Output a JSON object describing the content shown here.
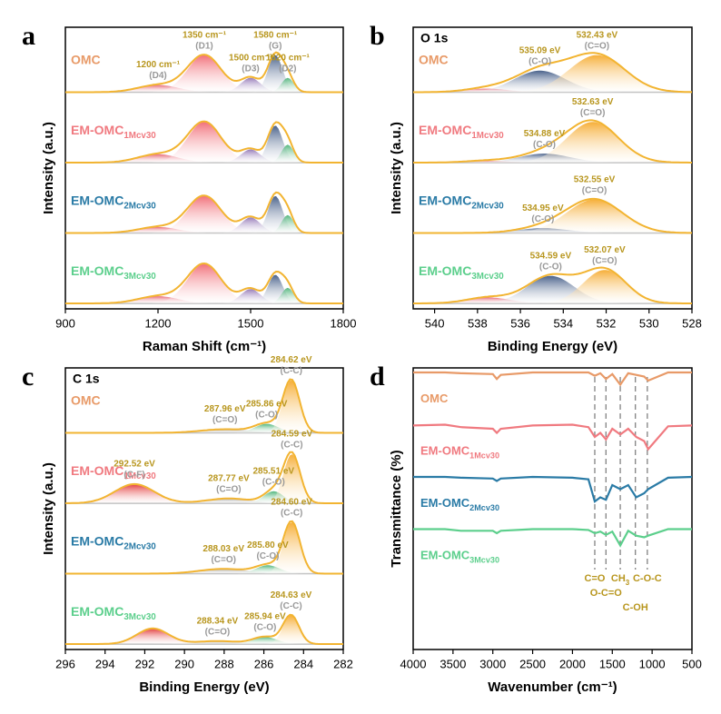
{
  "chart_data": [
    {
      "type": "spectra",
      "panel": "a",
      "xlabel": "Raman Shift (cm⁻¹)",
      "ylabel": "Intensity (a.u.)",
      "xlim": [
        900,
        1800
      ],
      "xticks": [
        900,
        1200,
        1500,
        1800
      ],
      "envelope_color": "#f2b431",
      "samples": [
        {
          "name": "OMC",
          "color": "#e89a68",
          "peaks": [
            {
              "center": 1200,
              "height": 0.12,
              "width": 65,
              "color": "#e45a6a",
              "label": "1200 cm⁻¹",
              "tag": "(D4)"
            },
            {
              "center": 1350,
              "height": 0.62,
              "width": 55,
              "color": "#f0606a",
              "label": "1350 cm⁻¹",
              "tag": "(D1)"
            },
            {
              "center": 1500,
              "height": 0.24,
              "width": 32,
              "color": "#8a6cb0",
              "label": "1500 cm⁻¹",
              "tag": "(D3)"
            },
            {
              "center": 1580,
              "height": 0.62,
              "width": 24,
              "color": "#35507e",
              "label": "1580 cm⁻¹",
              "tag": "(G)"
            },
            {
              "center": 1620,
              "height": 0.24,
              "width": 20,
              "color": "#3fae6e",
              "label": "1620 cm⁻¹",
              "tag": "(D2)"
            }
          ]
        },
        {
          "name": "EM-OMC",
          "subscript": "1Mcv30",
          "color": "#f07a80",
          "peaks": [
            {
              "center": 1200,
              "height": 0.14,
              "width": 65,
              "color": "#e45a6a"
            },
            {
              "center": 1350,
              "height": 0.68,
              "width": 55,
              "color": "#f0606a"
            },
            {
              "center": 1500,
              "height": 0.22,
              "width": 32,
              "color": "#8a6cb0"
            },
            {
              "center": 1580,
              "height": 0.62,
              "width": 24,
              "color": "#35507e"
            },
            {
              "center": 1620,
              "height": 0.3,
              "width": 20,
              "color": "#3fae6e"
            }
          ]
        },
        {
          "name": "EM-OMC",
          "subscript": "2Mcv30",
          "color": "#2a7ba6",
          "peaks": [
            {
              "center": 1200,
              "height": 0.1,
              "width": 65,
              "color": "#e45a6a"
            },
            {
              "center": 1350,
              "height": 0.62,
              "width": 55,
              "color": "#f0606a"
            },
            {
              "center": 1500,
              "height": 0.26,
              "width": 32,
              "color": "#8a6cb0"
            },
            {
              "center": 1580,
              "height": 0.62,
              "width": 24,
              "color": "#35507e"
            },
            {
              "center": 1620,
              "height": 0.3,
              "width": 20,
              "color": "#3fae6e"
            }
          ]
        },
        {
          "name": "EM-OMC",
          "subscript": "3Mcv30",
          "color": "#5ccf8c",
          "peaks": [
            {
              "center": 1200,
              "height": 0.12,
              "width": 65,
              "color": "#e45a6a"
            },
            {
              "center": 1350,
              "height": 0.66,
              "width": 55,
              "color": "#f0606a"
            },
            {
              "center": 1500,
              "height": 0.24,
              "width": 32,
              "color": "#8a6cb0"
            },
            {
              "center": 1580,
              "height": 0.48,
              "width": 24,
              "color": "#35507e"
            },
            {
              "center": 1620,
              "height": 0.26,
              "width": 20,
              "color": "#3fae6e"
            }
          ]
        }
      ]
    },
    {
      "type": "spectra",
      "panel": "b",
      "title": "O 1s",
      "xlabel": "Binding Energy (eV)",
      "ylabel": "Intensity (a.u.)",
      "xlim": [
        541,
        528
      ],
      "xticks": [
        540,
        538,
        536,
        534,
        532,
        530,
        528
      ],
      "envelope_color": "#f2b431",
      "samples": [
        {
          "name": "OMC",
          "color": "#e89a68",
          "peaks": [
            {
              "center": 537.6,
              "height": 0.06,
              "width": 1.0,
              "color": "#e45a6a"
            },
            {
              "center": 535.09,
              "height": 0.36,
              "width": 1.2,
              "color": "#35507e",
              "label": "535.09 eV",
              "tag": "(C-O)"
            },
            {
              "center": 532.43,
              "height": 0.62,
              "width": 1.3,
              "color": "#f5a623",
              "label": "532.43 eV",
              "tag": "(C=O)"
            }
          ]
        },
        {
          "name": "EM-OMC",
          "subscript": "1Mcv30",
          "color": "#f07a80",
          "peaks": [
            {
              "center": 537.6,
              "height": 0.03,
              "width": 1.0,
              "color": "#e45a6a"
            },
            {
              "center": 534.88,
              "height": 0.15,
              "width": 1.2,
              "color": "#35507e",
              "label": "534.88 eV",
              "tag": "(C-O)"
            },
            {
              "center": 532.63,
              "height": 0.68,
              "width": 1.2,
              "color": "#f5a623",
              "label": "532.63 eV",
              "tag": "(C=O)"
            }
          ]
        },
        {
          "name": "EM-OMC",
          "subscript": "2Mcv30",
          "color": "#2a7ba6",
          "peaks": [
            {
              "center": 534.95,
              "height": 0.08,
              "width": 1.2,
              "color": "#35507e",
              "label": "534.95 eV",
              "tag": "(C-O)"
            },
            {
              "center": 532.55,
              "height": 0.56,
              "width": 1.3,
              "color": "#f5a623",
              "label": "532.55 eV",
              "tag": "(C=O)"
            }
          ]
        },
        {
          "name": "EM-OMC",
          "subscript": "3Mcv30",
          "color": "#5ccf8c",
          "peaks": [
            {
              "center": 537.5,
              "height": 0.1,
              "width": 1.0,
              "color": "#e45a6a"
            },
            {
              "center": 534.59,
              "height": 0.46,
              "width": 1.1,
              "color": "#35507e",
              "label": "534.59 eV",
              "tag": "(C-O)"
            },
            {
              "center": 532.07,
              "height": 0.56,
              "width": 1.0,
              "color": "#f5a623",
              "label": "532.07 eV",
              "tag": "(C=O)"
            }
          ]
        }
      ]
    },
    {
      "type": "spectra",
      "panel": "c",
      "title": "C 1s",
      "xlabel": "Binding Energy (eV)",
      "ylabel": "Intensity (a.u.)",
      "xlim": [
        296,
        282
      ],
      "xticks": [
        296,
        294,
        292,
        290,
        288,
        286,
        284,
        282
      ],
      "envelope_color": "#f2b431",
      "samples": [
        {
          "name": "OMC",
          "color": "#e89a68",
          "peaks": [
            {
              "center": 287.96,
              "height": 0.06,
              "width": 1.2,
              "color": "#9a9a9a",
              "label": "287.96 eV",
              "tag": "(C=O)"
            },
            {
              "center": 285.86,
              "height": 0.15,
              "width": 0.6,
              "color": "#3fae6e",
              "label": "285.86 eV",
              "tag": "(C-O)"
            },
            {
              "center": 284.62,
              "height": 0.88,
              "width": 0.42,
              "color": "#f5a623",
              "label": "284.62 eV",
              "tag": "(C-C)"
            }
          ]
        },
        {
          "name": "EM-OMC",
          "subscript": "1Mcv30",
          "color": "#f07a80",
          "peaks": [
            {
              "center": 292.52,
              "height": 0.32,
              "width": 1.0,
              "color": "#e02828",
              "label": "292.52 eV",
              "tag": "(C-F)"
            },
            {
              "center": 287.77,
              "height": 0.08,
              "width": 1.1,
              "color": "#9a9a9a",
              "label": "287.77 eV",
              "tag": "(C=O)"
            },
            {
              "center": 285.51,
              "height": 0.2,
              "width": 0.5,
              "color": "#3fae6e",
              "label": "285.51 eV",
              "tag": "(C-O)"
            },
            {
              "center": 284.59,
              "height": 0.82,
              "width": 0.42,
              "color": "#f5a623",
              "label": "284.59 eV",
              "tag": "(C-C)"
            }
          ]
        },
        {
          "name": "EM-OMC",
          "subscript": "2Mcv30",
          "color": "#2a7ba6",
          "peaks": [
            {
              "center": 288.03,
              "height": 0.08,
              "width": 1.2,
              "color": "#9a9a9a",
              "label": "288.03 eV",
              "tag": "(C=O)"
            },
            {
              "center": 285.8,
              "height": 0.14,
              "width": 0.6,
              "color": "#3fae6e",
              "label": "285.80 eV",
              "tag": "(C-O)"
            },
            {
              "center": 284.6,
              "height": 0.86,
              "width": 0.42,
              "color": "#f5a623",
              "label": "284.60 eV",
              "tag": "(C-C)"
            }
          ]
        },
        {
          "name": "EM-OMC",
          "subscript": "3Mcv30",
          "color": "#5ccf8c",
          "peaks": [
            {
              "center": 291.6,
              "height": 0.26,
              "width": 0.8,
              "color": "#e02828"
            },
            {
              "center": 288.34,
              "height": 0.05,
              "width": 1.1,
              "color": "#9a9a9a",
              "label": "288.34 eV",
              "tag": "(C=O)"
            },
            {
              "center": 285.94,
              "height": 0.12,
              "width": 0.6,
              "color": "#3fae6e",
              "label": "285.94 eV",
              "tag": "(C-O)"
            },
            {
              "center": 284.63,
              "height": 0.48,
              "width": 0.4,
              "color": "#f5a623",
              "label": "284.63 eV",
              "tag": "(C-C)"
            }
          ]
        }
      ]
    },
    {
      "type": "ftir",
      "panel": "d",
      "xlabel": "Wavenumber (cm⁻¹)",
      "ylabel": "Transmittance (%)",
      "xlim": [
        4000,
        500
      ],
      "xticks": [
        4000,
        3500,
        3000,
        2500,
        2000,
        1500,
        1000,
        500
      ],
      "x": [
        4000,
        3600,
        3400,
        3000,
        2950,
        2900,
        2500,
        2000,
        1800,
        1720,
        1650,
        1580,
        1500,
        1400,
        1300,
        1200,
        1100,
        1050,
        800,
        500
      ],
      "series": [
        {
          "name": "OMC",
          "color": "#e89a68",
          "values": [
            1,
            1,
            0.99,
            0.98,
            0.92,
            0.97,
            1,
            1,
            1,
            0.96,
            0.99,
            0.92,
            0.98,
            0.85,
            0.99,
            0.97,
            0.95,
            0.9,
            1,
            1
          ]
        },
        {
          "name": "EM-OMC",
          "subscript": "1Mcv30",
          "color": "#f07a80",
          "values": [
            0.99,
            1,
            0.97,
            0.95,
            0.9,
            0.95,
            0.99,
            1,
            0.97,
            0.85,
            0.9,
            0.82,
            0.95,
            0.88,
            0.95,
            0.85,
            0.8,
            0.7,
            0.98,
            0.99
          ]
        },
        {
          "name": "EM-OMC",
          "subscript": "2Mcv30",
          "color": "#2a7ba6",
          "values": [
            1,
            1,
            0.99,
            0.98,
            0.95,
            0.98,
            1,
            0.99,
            0.97,
            0.7,
            0.75,
            0.72,
            0.9,
            0.85,
            0.9,
            0.75,
            0.8,
            0.85,
            0.99,
            1
          ]
        },
        {
          "name": "EM-OMC",
          "subscript": "3Mcv30",
          "color": "#5ccf8c",
          "values": [
            1,
            1,
            0.98,
            0.98,
            0.95,
            0.98,
            1,
            1,
            0.99,
            0.95,
            0.97,
            0.93,
            0.97,
            0.8,
            0.98,
            0.92,
            0.9,
            0.92,
            1,
            1
          ]
        }
      ],
      "markers": [
        {
          "x": 1720,
          "label": "C=O"
        },
        {
          "x": 1580,
          "label": "O-C=O"
        },
        {
          "x": 1400,
          "label": "CH",
          "subscript": "3"
        },
        {
          "x": 1210,
          "label": "C-OH"
        },
        {
          "x": 1060,
          "label": "C-O-C"
        }
      ]
    }
  ]
}
